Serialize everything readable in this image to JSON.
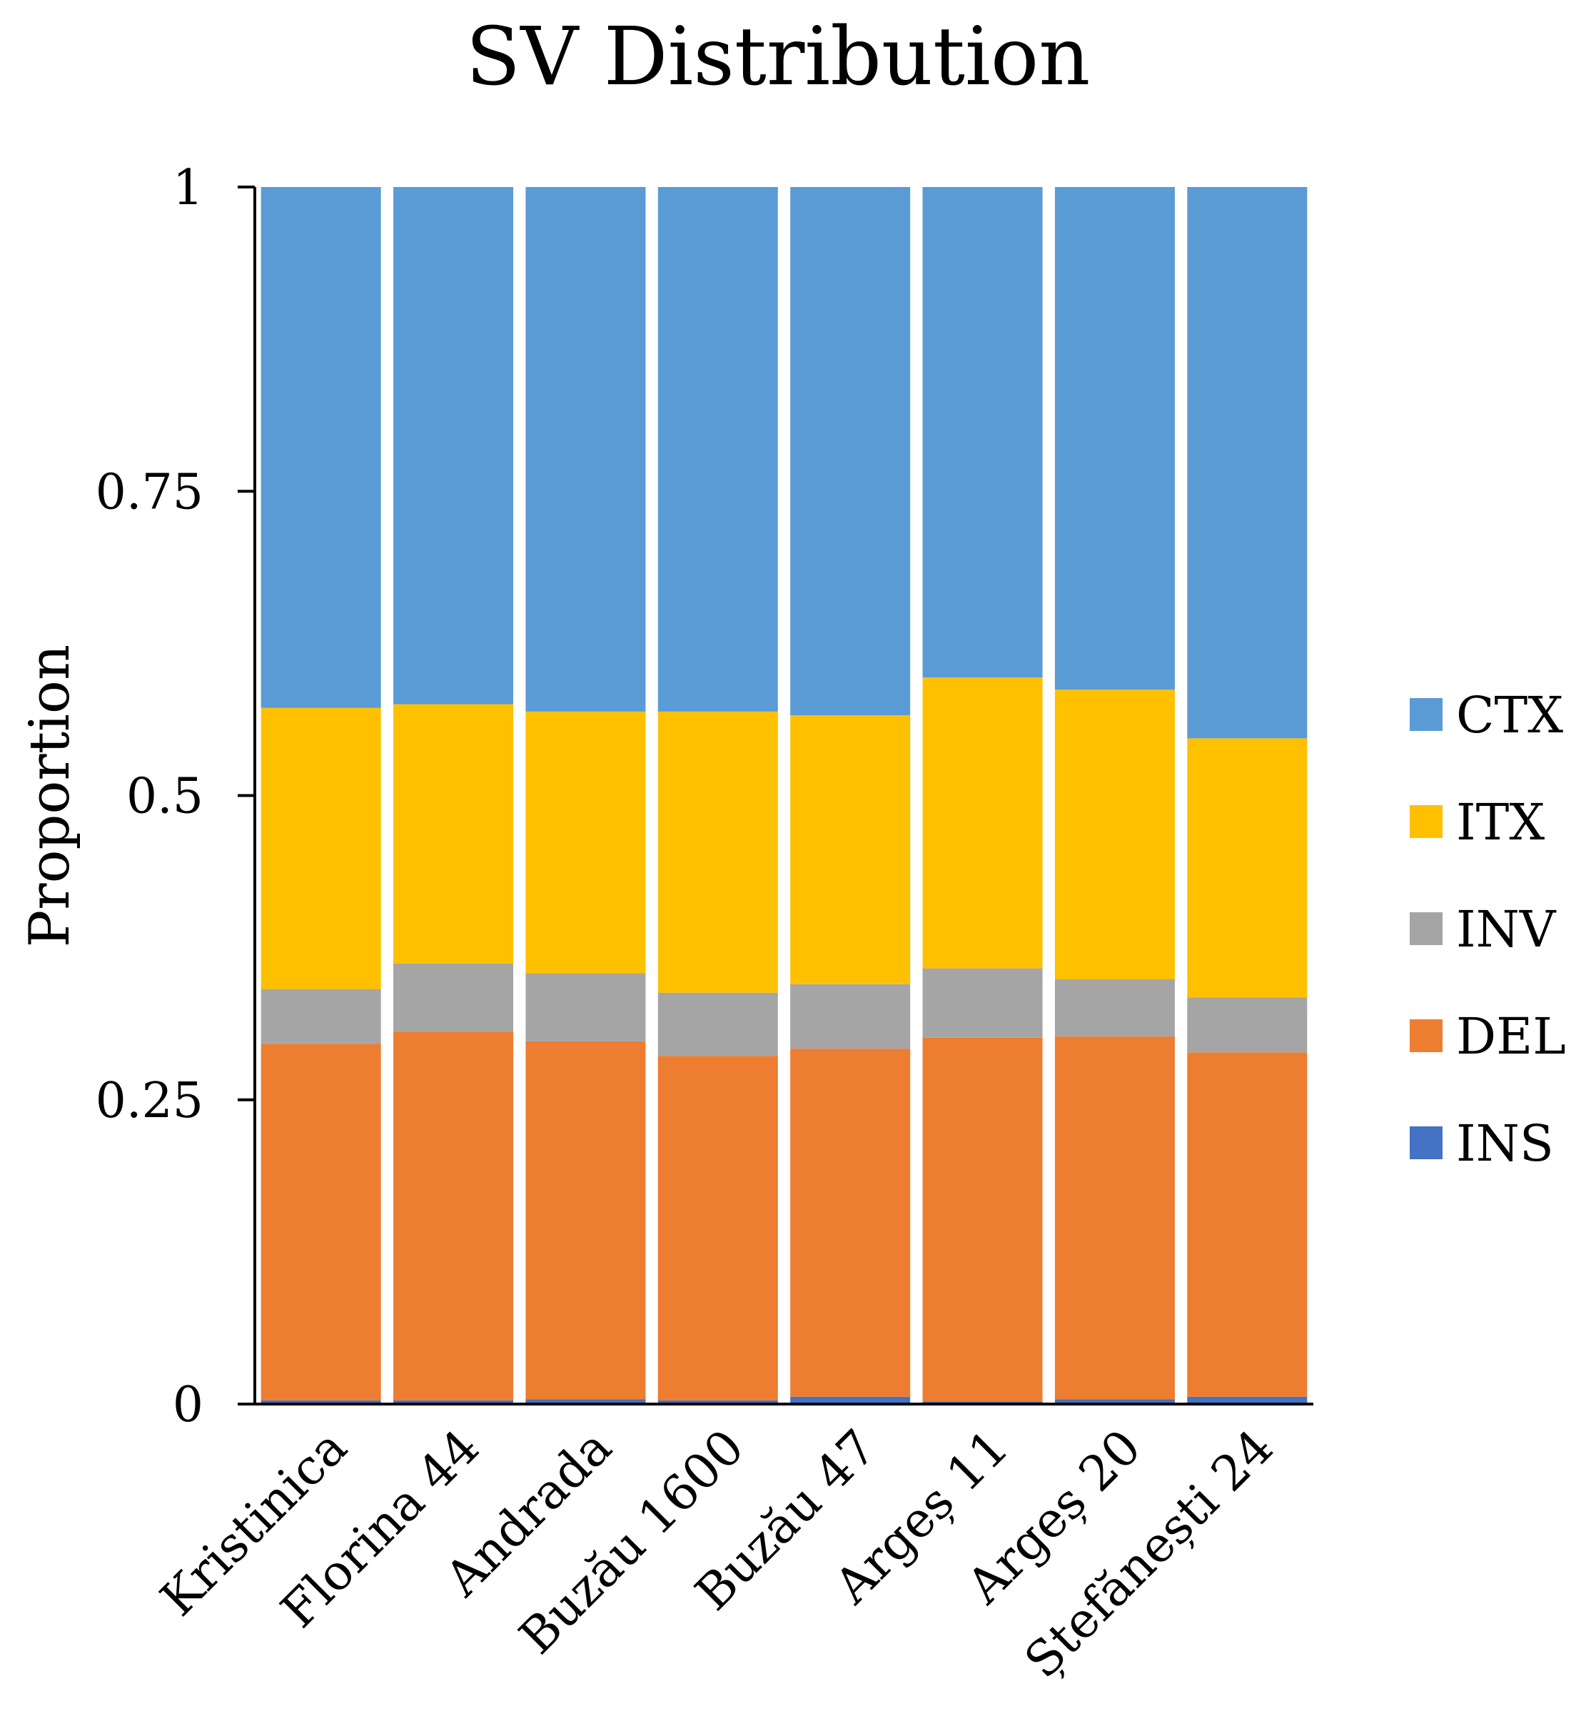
{
  "chart_data": {
    "type": "bar",
    "stacked": true,
    "title": "SV Distribution",
    "xlabel": "",
    "ylabel": "Proportion",
    "ylim": [
      0,
      1
    ],
    "yticks": [
      {
        "value": 0,
        "label": "0"
      },
      {
        "value": 0.25,
        "label": "0.25"
      },
      {
        "value": 0.5,
        "label": "0.5"
      },
      {
        "value": 0.75,
        "label": "0.75"
      },
      {
        "value": 1,
        "label": "1"
      }
    ],
    "grid": false,
    "legend_position": "right",
    "categories": [
      "Kristinica",
      "Florina 44",
      "Andrada",
      "Buzău 1600",
      "Buzău 47",
      "Argeș 11",
      "Argeș 20",
      "Ștefănești 24"
    ],
    "series": [
      {
        "name": "INS",
        "color": "#4472C4",
        "values": [
          0.003,
          0.003,
          0.004,
          0.003,
          0.006,
          0.002,
          0.004,
          0.006
        ]
      },
      {
        "name": "DEL",
        "color": "#ED7D31",
        "values": [
          0.293,
          0.303,
          0.294,
          0.283,
          0.286,
          0.299,
          0.298,
          0.283
        ]
      },
      {
        "name": "INV",
        "color": "#A5A5A5",
        "values": [
          0.045,
          0.056,
          0.056,
          0.052,
          0.053,
          0.057,
          0.047,
          0.045
        ]
      },
      {
        "name": "ITX",
        "color": "#FFC000",
        "values": [
          0.231,
          0.213,
          0.215,
          0.231,
          0.221,
          0.239,
          0.238,
          0.213
        ]
      },
      {
        "name": "CTX",
        "color": "#5B9BD5",
        "values": [
          0.428,
          0.425,
          0.431,
          0.431,
          0.434,
          0.403,
          0.413,
          0.453
        ]
      }
    ],
    "legend": [
      {
        "name": "CTX",
        "color": "#5B9BD5"
      },
      {
        "name": "ITX",
        "color": "#FFC000"
      },
      {
        "name": "INV",
        "color": "#A5A5A5"
      },
      {
        "name": "DEL",
        "color": "#ED7D31"
      },
      {
        "name": "INS",
        "color": "#4472C4"
      }
    ]
  }
}
